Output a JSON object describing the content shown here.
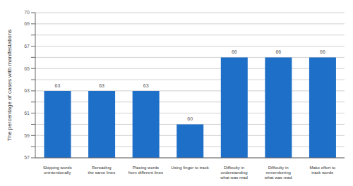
{
  "chart_data": {
    "type": "bar",
    "categories": [
      "Skipping words\nunintentionally",
      "Rereading\nthe same lines",
      "Placing words\nfrom different lines",
      "Using finger to track",
      "Difficulty in\nunderstanding\nwhat was read",
      "Difficulty in\nremembering\nwhat was read",
      "Make effort to\ntrack words"
    ],
    "values": [
      63,
      63,
      63,
      60,
      66,
      66,
      66
    ],
    "color": "#1e6fc7",
    "ylabel": "The percentage of cases with manifestations",
    "ylim": [
      57,
      70
    ],
    "yticks": [
      57,
      {
        "value": 58,
        "label": ""
      },
      59,
      {
        "value": 60,
        "label": ""
      },
      61,
      {
        "value": 62,
        "label": ""
      },
      63,
      {
        "value": 64,
        "label": ""
      },
      65,
      {
        "value": 66,
        "label": ""
      },
      67,
      {
        "value": 68,
        "label": ""
      },
      69,
      70
    ],
    "grid": true,
    "data_labels": true
  }
}
